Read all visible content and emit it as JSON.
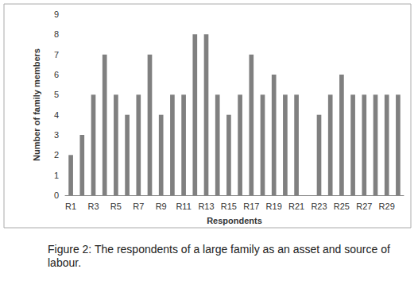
{
  "chart_data": {
    "type": "bar",
    "title": "Figure 2: The respondents of a large family as an asset and source of labour.",
    "x_label": "Respondents",
    "y_label": "Number of family members",
    "categories": [
      "R1",
      null,
      "R3",
      null,
      "R5",
      null,
      "R7",
      null,
      "R9",
      null,
      "R11",
      null,
      "R13",
      null,
      "R15",
      null,
      "R17",
      null,
      "R19",
      null,
      "R21",
      null,
      "R23",
      null,
      "R25",
      null,
      "R27",
      null,
      "R29",
      null
    ],
    "values": [
      2,
      3,
      5,
      7,
      5,
      4,
      5,
      7,
      4,
      5,
      5,
      8,
      8,
      5,
      4,
      5,
      7,
      5,
      6,
      5,
      5,
      0,
      4,
      5,
      6,
      5,
      5,
      5,
      5,
      5
    ],
    "color": "#808080",
    "ylim": [
      0,
      9
    ],
    "yticks": [
      0,
      1,
      2,
      3,
      4,
      5,
      6,
      7,
      8,
      9
    ],
    "grid": false
  }
}
